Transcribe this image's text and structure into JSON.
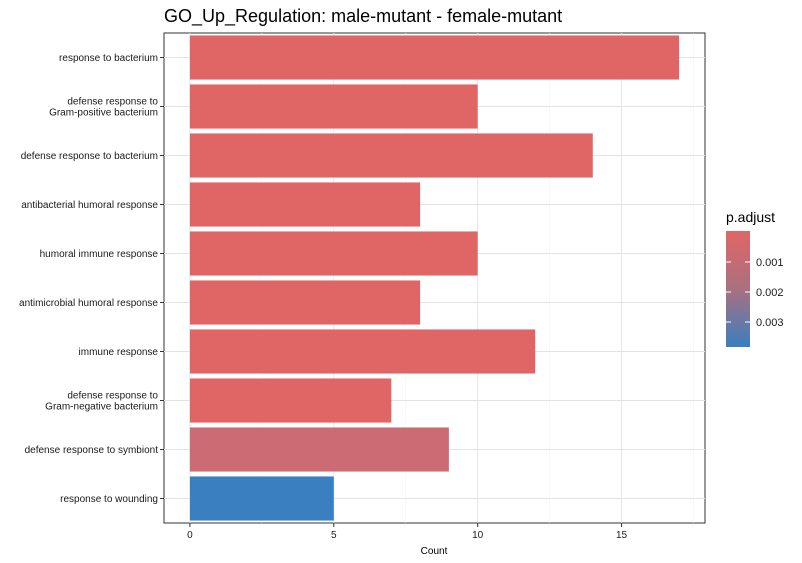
{
  "chart_data": {
    "type": "bar",
    "orientation": "horizontal",
    "title": "GO_Up_Regulation: male-mutant - female-mutant",
    "xlabel": "Count",
    "ylabel": "",
    "xlim": [
      -0.9,
      17.9
    ],
    "xticks": [
      "0",
      "5",
      "10",
      "15"
    ],
    "grid": true,
    "categories": [
      [
        "response to bacterium"
      ],
      [
        "defense response to",
        "Gram-positive bacterium"
      ],
      [
        "defense response to bacterium"
      ],
      [
        "antibacterial humoral response"
      ],
      [
        "humoral immune response"
      ],
      [
        "antimicrobial humoral response"
      ],
      [
        "immune response"
      ],
      [
        "defense response to",
        "Gram-negative bacterium"
      ],
      [
        "defense response to symbiont"
      ],
      [
        "response to wounding"
      ]
    ],
    "values": [
      17,
      10,
      14,
      8,
      10,
      8,
      12,
      7,
      9,
      5
    ],
    "p_adjust_colors": [
      "#e06666",
      "#e06666",
      "#e06666",
      "#e06666",
      "#e06666",
      "#e06666",
      "#e06666",
      "#e06666",
      "#cd6b75",
      "#3a7fbf"
    ],
    "legend": {
      "title": "p.adjust",
      "ticks": [
        "0.001",
        "0.002",
        "0.003"
      ],
      "position": "right",
      "gradient_top": "#e06666",
      "gradient_bottom": "#3a7fbf"
    }
  }
}
